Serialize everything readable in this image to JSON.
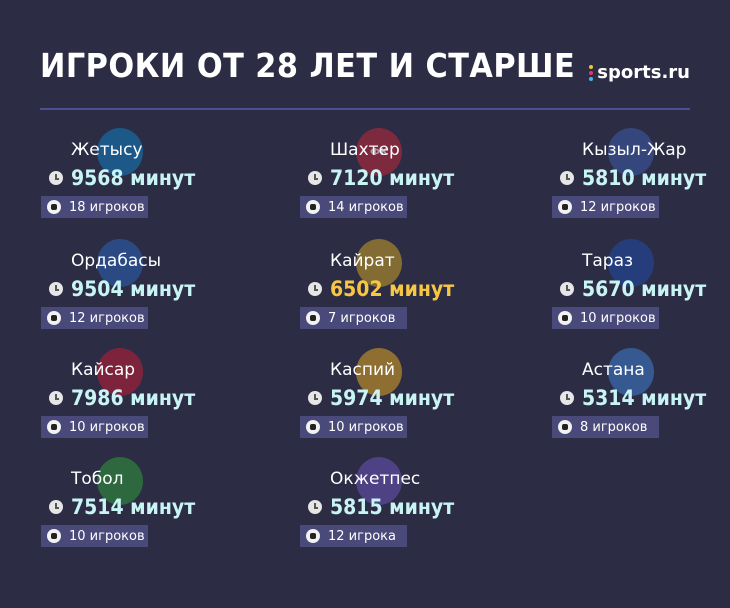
{
  "header": {
    "title": "ИГРОКИ ОТ 28 ЛЕТ И СТАРШЕ",
    "brand": "sports.ru"
  },
  "teams": [
    {
      "name": "Жетысу",
      "minutes": "9568 минут",
      "players": "18 игроков",
      "logo_text": "",
      "logo_color": "#0e7fbf"
    },
    {
      "name": "Шахтер",
      "minutes": "7120 минут",
      "players": "14 игроков",
      "logo_text": "ФК",
      "logo_color": "#c0283a"
    },
    {
      "name": "Кызыл-Жар",
      "minutes": "5810 минут",
      "players": "12 игроков",
      "logo_text": "",
      "logo_color": "#3a5ca8"
    },
    {
      "name": "Ордабасы",
      "minutes": "9504 минут",
      "players": "12 игроков",
      "logo_text": "",
      "logo_color": "#2a64b8"
    },
    {
      "name": "Кайрат",
      "minutes": "6502 минут",
      "players": "7 игроков",
      "logo_text": "",
      "logo_color": "#c9a227",
      "highlight": true
    },
    {
      "name": "Тараз",
      "minutes": "5670 минут",
      "players": "10 игроков",
      "logo_text": "",
      "logo_color": "#1f4fa8"
    },
    {
      "name": "Кайсар",
      "minutes": "7986 минут",
      "players": "10 игроков",
      "logo_text": "",
      "logo_color": "#c01f35"
    },
    {
      "name": "Каспий",
      "minutes": "5974 минут",
      "players": "10 игроков",
      "logo_text": "",
      "logo_color": "#e0a820"
    },
    {
      "name": "Астана",
      "minutes": "5314 минут",
      "players": "8 игроков",
      "logo_text": "",
      "logo_color": "#3f7fd0"
    },
    {
      "name": "Тобол",
      "minutes": "7514 минут",
      "players": "10 игроков",
      "logo_text": "",
      "logo_color": "#2e9a3a"
    },
    {
      "name": "Окжетпес",
      "minutes": "5815 минут",
      "players": "12 игрока",
      "logo_text": "",
      "logo_color": "#6a54b8"
    }
  ]
}
